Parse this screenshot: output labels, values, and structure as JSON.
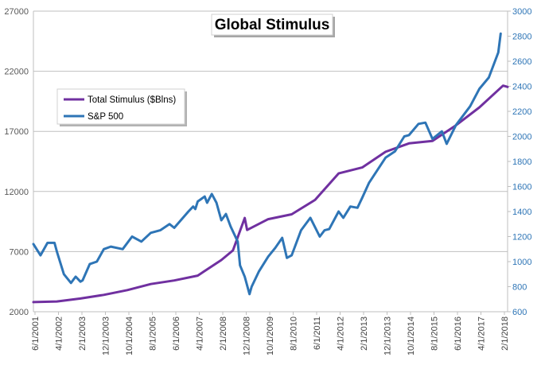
{
  "chart_data": {
    "type": "line",
    "title": "Global Stimulus",
    "legend_position": "top-left",
    "grid": true,
    "x_tick_labels": [
      "6/1/2001",
      "4/1/2002",
      "2/1/2003",
      "12/1/2003",
      "10/1/2004",
      "8/1/2005",
      "6/1/2006",
      "4/1/2007",
      "2/1/2008",
      "12/1/2008",
      "10/1/2009",
      "8/1/2010",
      "6/1/2011",
      "4/1/2012",
      "2/1/2013",
      "12/1/2013",
      "10/1/2014",
      "8/1/2015",
      "6/1/2016",
      "4/1/2017",
      "2/1/2018"
    ],
    "x_range": [
      "2001-06-01",
      "2018-04-01"
    ],
    "left_axis": {
      "ticks": [
        "2000",
        "7000",
        "12000",
        "17000",
        "22000",
        "27000"
      ],
      "ylim": [
        2000,
        27000
      ]
    },
    "right_axis": {
      "ticks": [
        "600",
        "800",
        "1000",
        "1200",
        "1400",
        "1600",
        "1800",
        "2000",
        "2200",
        "2400",
        "2600",
        "2800",
        "3000"
      ],
      "ylim": [
        600,
        3000
      ]
    },
    "colors": {
      "stimulus": "#7030a0",
      "sp500": "#2e75b6",
      "right_axis_text": "#2e75b6"
    },
    "series": [
      {
        "name": "Total Stimulus ($Blns)",
        "axis": "left",
        "color": "#7030a0",
        "points": [
          [
            "2001-06-01",
            2800
          ],
          [
            "2002-04-01",
            2850
          ],
          [
            "2003-02-01",
            3100
          ],
          [
            "2003-12-01",
            3400
          ],
          [
            "2004-10-01",
            3800
          ],
          [
            "2005-08-01",
            4300
          ],
          [
            "2006-06-01",
            4600
          ],
          [
            "2007-04-01",
            5000
          ],
          [
            "2008-02-01",
            6300
          ],
          [
            "2008-07-01",
            7100
          ],
          [
            "2008-12-01",
            9800
          ],
          [
            "2009-01-01",
            8800
          ],
          [
            "2009-10-01",
            9700
          ],
          [
            "2010-08-01",
            10100
          ],
          [
            "2011-06-01",
            11300
          ],
          [
            "2012-04-01",
            13500
          ],
          [
            "2013-02-01",
            14000
          ],
          [
            "2013-12-01",
            15300
          ],
          [
            "2014-10-01",
            16000
          ],
          [
            "2015-08-01",
            16200
          ],
          [
            "2016-06-01",
            17500
          ],
          [
            "2017-04-01",
            19000
          ],
          [
            "2018-02-01",
            20800
          ],
          [
            "2018-04-01",
            20700
          ]
        ]
      },
      {
        "name": "S&P 500",
        "axis": "right",
        "color": "#2e75b6",
        "points": [
          [
            "2001-06-01",
            1140
          ],
          [
            "2001-09-01",
            1050
          ],
          [
            "2001-12-01",
            1150
          ],
          [
            "2002-03-01",
            1150
          ],
          [
            "2002-04-01",
            1080
          ],
          [
            "2002-07-01",
            900
          ],
          [
            "2002-10-01",
            830
          ],
          [
            "2002-12-01",
            880
          ],
          [
            "2003-02-01",
            840
          ],
          [
            "2003-03-01",
            850
          ],
          [
            "2003-06-01",
            980
          ],
          [
            "2003-09-01",
            1000
          ],
          [
            "2003-12-01",
            1100
          ],
          [
            "2004-03-01",
            1120
          ],
          [
            "2004-08-01",
            1100
          ],
          [
            "2004-12-01",
            1200
          ],
          [
            "2005-04-01",
            1160
          ],
          [
            "2005-08-01",
            1230
          ],
          [
            "2005-12-01",
            1250
          ],
          [
            "2006-04-01",
            1300
          ],
          [
            "2006-06-01",
            1270
          ],
          [
            "2006-12-01",
            1400
          ],
          [
            "2007-02-01",
            1440
          ],
          [
            "2007-03-01",
            1420
          ],
          [
            "2007-04-01",
            1480
          ],
          [
            "2007-07-01",
            1520
          ],
          [
            "2007-08-01",
            1470
          ],
          [
            "2007-10-01",
            1540
          ],
          [
            "2007-12-01",
            1470
          ],
          [
            "2008-02-01",
            1330
          ],
          [
            "2008-04-01",
            1380
          ],
          [
            "2008-06-01",
            1280
          ],
          [
            "2008-09-01",
            1160
          ],
          [
            "2008-10-01",
            970
          ],
          [
            "2008-12-01",
            880
          ],
          [
            "2009-02-01",
            740
          ],
          [
            "2009-03-01",
            800
          ],
          [
            "2009-06-01",
            920
          ],
          [
            "2009-10-01",
            1040
          ],
          [
            "2010-01-01",
            1110
          ],
          [
            "2010-04-01",
            1190
          ],
          [
            "2010-06-01",
            1030
          ],
          [
            "2010-08-01",
            1050
          ],
          [
            "2010-12-01",
            1250
          ],
          [
            "2011-04-01",
            1350
          ],
          [
            "2011-08-01",
            1200
          ],
          [
            "2011-10-01",
            1250
          ],
          [
            "2011-12-01",
            1260
          ],
          [
            "2012-04-01",
            1400
          ],
          [
            "2012-06-01",
            1350
          ],
          [
            "2012-09-01",
            1440
          ],
          [
            "2012-12-01",
            1430
          ],
          [
            "2013-02-01",
            1510
          ],
          [
            "2013-05-01",
            1630
          ],
          [
            "2013-12-01",
            1830
          ],
          [
            "2014-04-01",
            1880
          ],
          [
            "2014-08-01",
            2000
          ],
          [
            "2014-10-01",
            2010
          ],
          [
            "2015-02-01",
            2100
          ],
          [
            "2015-05-01",
            2110
          ],
          [
            "2015-08-01",
            1980
          ],
          [
            "2015-12-01",
            2040
          ],
          [
            "2016-02-01",
            1940
          ],
          [
            "2016-06-01",
            2090
          ],
          [
            "2016-12-01",
            2240
          ],
          [
            "2017-04-01",
            2380
          ],
          [
            "2017-08-01",
            2470
          ],
          [
            "2017-12-01",
            2670
          ],
          [
            "2018-01-01",
            2820
          ]
        ]
      }
    ]
  }
}
